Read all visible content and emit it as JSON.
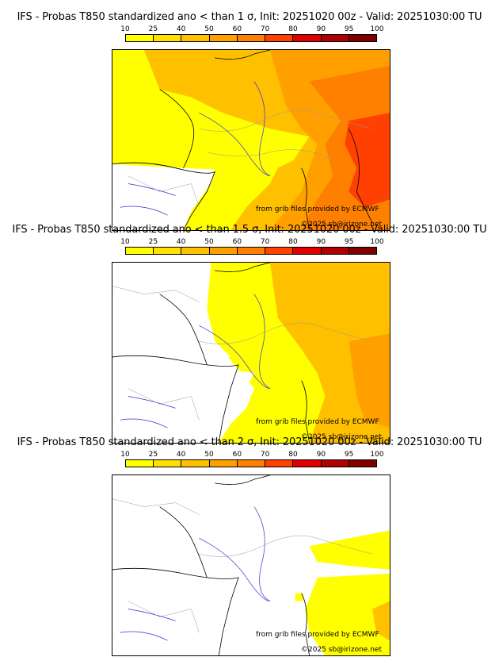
{
  "colorbar": {
    "ticks": [
      "10",
      "25",
      "40",
      "50",
      "60",
      "70",
      "80",
      "90",
      "95",
      "100"
    ],
    "colors": [
      "#ffff00",
      "#ffe000",
      "#ffc000",
      "#ffa000",
      "#ff8000",
      "#ff4000",
      "#e00000",
      "#b00000",
      "#800000"
    ]
  },
  "credits": {
    "source": "from grib files provided by ECMWF",
    "copyright": "©2025 sb@irizone.net"
  },
  "panels": [
    {
      "title": "IFS - Probas T850  standardized ano < than 1 σ, Init: 20251020 00z - Valid: 20251030:00 TU"
    },
    {
      "title": "IFS - Probas T850  standardized ano < than 1.5 σ, Init: 20251020 00z - Valid: 20251030:00 TU"
    },
    {
      "title": "IFS - Probas T850  standardized ano < than 2 σ, Init: 20251020 00z - Valid: 20251030:00 TU"
    }
  ],
  "palette": {
    "yellow": "#ffff00",
    "gold": "#ffc000",
    "orange": "#ffa000",
    "dark-orange": "#ff8000",
    "red-orange": "#ff4000",
    "coast": "#000000",
    "rivers": "#3030d0",
    "borders": "#999999"
  }
}
